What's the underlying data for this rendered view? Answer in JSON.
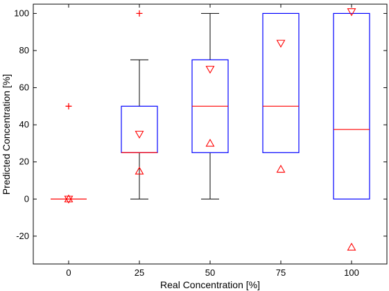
{
  "chart_data": {
    "type": "box",
    "xlabel": "Real Concentration [%]",
    "ylabel": "Predicted Concentration [%]",
    "ylim": [
      -35,
      105
    ],
    "xticks": [
      "0",
      "25",
      "50",
      "75",
      "100"
    ],
    "yticks": [
      -20,
      0,
      20,
      40,
      60,
      80,
      100
    ],
    "grid": false,
    "colors": {
      "box": "#0000ff",
      "median": "#ff0000",
      "whisker": "#000000",
      "marker": "#ff0000"
    },
    "boxes": [
      {
        "category": "0",
        "q1": 0,
        "median": 0,
        "q3": 0,
        "whisker_low": 0,
        "whisker_high": 0,
        "outliers": [
          50
        ],
        "ci_low": 0,
        "ci_high": 0
      },
      {
        "category": "25",
        "q1": 25,
        "median": 25,
        "q3": 50,
        "whisker_low": 0,
        "whisker_high": 75,
        "outliers": [
          100
        ],
        "ci_low": 15,
        "ci_high": 35
      },
      {
        "category": "50",
        "q1": 25,
        "median": 50,
        "q3": 75,
        "whisker_low": 0,
        "whisker_high": 100,
        "outliers": [],
        "ci_low": 30,
        "ci_high": 70
      },
      {
        "category": "75",
        "q1": 25,
        "median": 50,
        "q3": 100,
        "whisker_low": 25,
        "whisker_high": 100,
        "outliers": [],
        "ci_low": 16,
        "ci_high": 84
      },
      {
        "category": "100",
        "q1": 0,
        "median": 37.5,
        "q3": 100,
        "whisker_low": 0,
        "whisker_high": 100,
        "outliers": [],
        "ci_low": -26,
        "ci_high": 101
      }
    ]
  }
}
